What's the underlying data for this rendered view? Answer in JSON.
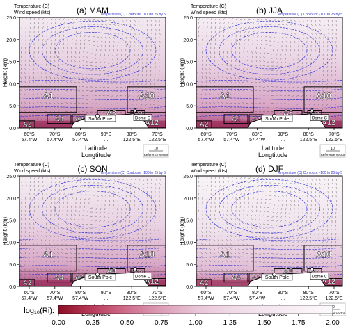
{
  "panels": [
    {
      "label": "(a) MAM",
      "season": "MAM"
    },
    {
      "label": "(b) JJA",
      "season": "JJA"
    },
    {
      "label": "(c) SON",
      "season": "SON"
    },
    {
      "label": "(d) DJF",
      "season": "DJF"
    }
  ],
  "header": {
    "left_line1": "Temperature (C)",
    "left_line2": "Wind speed (kts)",
    "right": "Temperature (C) Contours: -100 to 25 by 5"
  },
  "axes": {
    "ylabel": "Height (km)",
    "yticks": [
      "0.0",
      "5.0",
      "10.0",
      "15.0",
      "20.0",
      "25.0"
    ],
    "ylim": [
      0,
      25
    ],
    "xlabel_line1": "Latitude",
    "xlabel_line2": "Longtitude",
    "xticks": [
      {
        "lat": "60°S",
        "lon": "57.4°W"
      },
      {
        "lat": "70°S",
        "lon": "57.4°W"
      },
      {
        "lat": "80°S",
        "lon": "57.4°W"
      },
      {
        "lat": "90°S",
        "lon": "..."
      },
      {
        "lat": "80°S",
        "lon": "122.5°E"
      },
      {
        "lat": "70°S",
        "lon": "122.5°E"
      }
    ]
  },
  "regions": [
    "A1",
    "A2",
    "A4",
    "A6",
    "A8",
    "A10",
    "A11",
    "A12"
  ],
  "sites": {
    "south_pole": "South Pole",
    "dome_c": "Dome C"
  },
  "reference_vector": {
    "value": "10",
    "label": "Reference Vector"
  },
  "colorbar": {
    "label": "log₁₀(Ri):",
    "ticks": [
      "0.00",
      "0.25",
      "0.50",
      "0.75",
      "1.00",
      "1.25",
      "1.50",
      "1.75",
      "2.00"
    ],
    "range": [
      0,
      2
    ],
    "colors": [
      "#8c0f26",
      "#b83a5a",
      "#cf6f8e",
      "#dca0b8",
      "#e8c4d6",
      "#efd8e5",
      "#f4e6ef",
      "#f8f0f5",
      "#fcfafc"
    ]
  }
}
